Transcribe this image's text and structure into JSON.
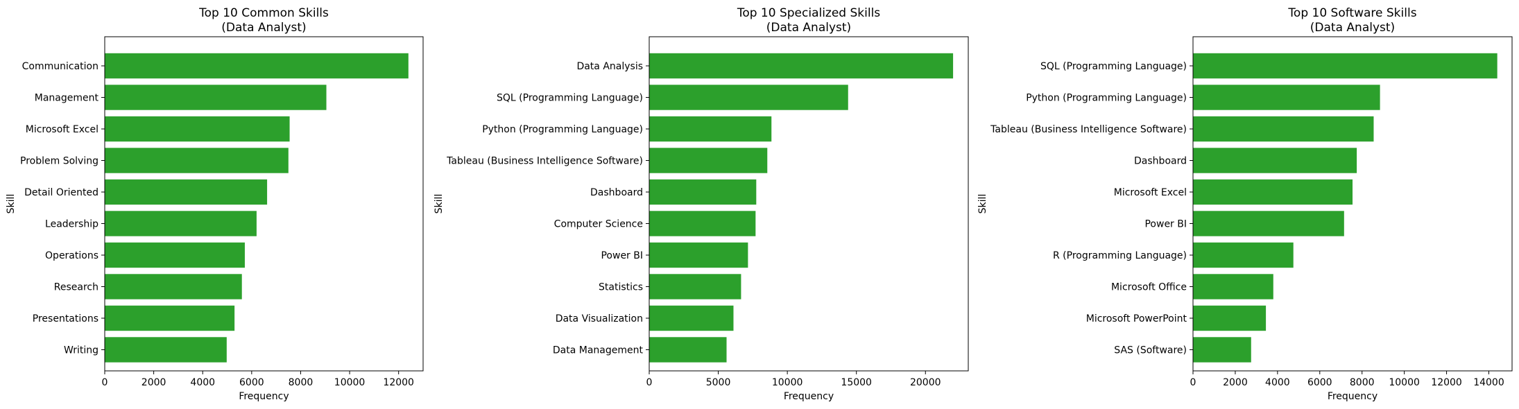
{
  "colors": {
    "bar": "#2ca02c",
    "axis": "#000000",
    "background": "#ffffff"
  },
  "chart_data": [
    {
      "type": "bar",
      "orientation": "horizontal",
      "title": "Top 10 Common Skills",
      "subtitle": "(Data Analyst)",
      "xlabel": "Frequency",
      "ylabel": "Skill",
      "xlim": [
        0,
        13000
      ],
      "xticks": [
        0,
        2000,
        4000,
        6000,
        8000,
        10000,
        12000
      ],
      "xtick_labels": [
        "0",
        "2000",
        "4000",
        "6000",
        "8000",
        "10000",
        "12000"
      ],
      "grid": false,
      "categories": [
        "Communication",
        "Management",
        "Microsoft Excel",
        "Problem Solving",
        "Detail Oriented",
        "Leadership",
        "Operations",
        "Research",
        "Presentations",
        "Writing"
      ],
      "values": [
        12400,
        9050,
        7550,
        7500,
        6630,
        6200,
        5720,
        5600,
        5300,
        4980
      ]
    },
    {
      "type": "bar",
      "orientation": "horizontal",
      "title": "Top 10 Specialized Skills",
      "subtitle": "(Data Analyst)",
      "xlabel": "Frequency",
      "ylabel": "Skill",
      "xlim": [
        0,
        23100
      ],
      "xticks": [
        0,
        5000,
        10000,
        15000,
        20000
      ],
      "xtick_labels": [
        "0",
        "5000",
        "10000",
        "15000",
        "20000"
      ],
      "grid": false,
      "categories": [
        "Data Analysis",
        "SQL (Programming Language)",
        "Python (Programming Language)",
        "Tableau (Business Intelligence Software)",
        "Dashboard",
        "Computer Science",
        "Power BI",
        "Statistics",
        "Data Visualization",
        "Data Management"
      ],
      "values": [
        22000,
        14400,
        8850,
        8550,
        7750,
        7700,
        7150,
        6650,
        6100,
        5600
      ]
    },
    {
      "type": "bar",
      "orientation": "horizontal",
      "title": "Top 10 Software Skills",
      "subtitle": "(Data Analyst)",
      "xlabel": "Frequency",
      "ylabel": "Skill",
      "xlim": [
        0,
        15100
      ],
      "xticks": [
        0,
        2000,
        4000,
        6000,
        8000,
        10000,
        12000,
        14000
      ],
      "xtick_labels": [
        "0",
        "2000",
        "4000",
        "6000",
        "8000",
        "10000",
        "12000",
        "14000"
      ],
      "grid": false,
      "categories": [
        "SQL (Programming Language)",
        "Python (Programming Language)",
        "Tableau (Business Intelligence Software)",
        "Dashboard",
        "Microsoft Excel",
        "Power BI",
        "R (Programming Language)",
        "Microsoft Office",
        "Microsoft PowerPoint",
        "SAS (Software)"
      ],
      "values": [
        14400,
        8850,
        8550,
        7750,
        7550,
        7150,
        4750,
        3800,
        3450,
        2750
      ]
    }
  ]
}
